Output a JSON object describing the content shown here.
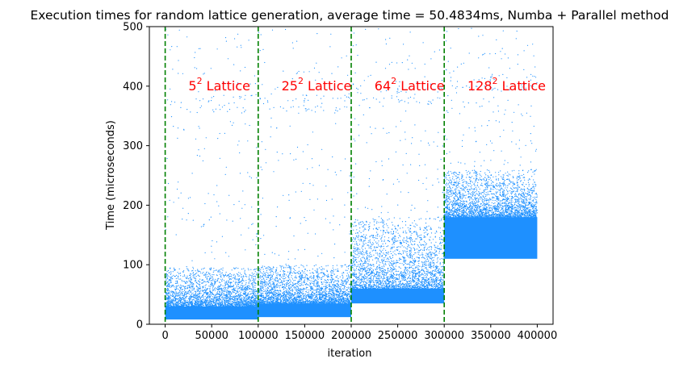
{
  "chart_data": {
    "type": "scatter",
    "title": "Execution times for random lattice generation, average time = 50.4834ms, Numba + Parallel method",
    "xlabel": "iteration",
    "ylabel": "Time (microseconds)",
    "xlim": [
      -17000,
      417000
    ],
    "ylim": [
      0,
      500
    ],
    "xticks": [
      0,
      50000,
      100000,
      150000,
      200000,
      250000,
      300000,
      350000,
      400000
    ],
    "xtick_labels": [
      "0",
      "50000",
      "100000",
      "150000",
      "200000",
      "250000",
      "300000",
      "350000",
      "400000"
    ],
    "yticks": [
      0,
      100,
      200,
      300,
      400,
      500
    ],
    "ytick_labels": [
      "0",
      "100",
      "200",
      "300",
      "400",
      "500"
    ],
    "grid": false,
    "point_color": "#1e90ff",
    "divider_color": "#008000",
    "annotation_color": "#ff0000",
    "dividers": [
      0,
      100000,
      200000,
      300000
    ],
    "annotations": [
      {
        "base": "5",
        "exp": "2",
        "suffix": " Lattice",
        "x": 25000,
        "y": 400
      },
      {
        "base": "25",
        "exp": "2",
        "suffix": " Lattice",
        "x": 125000,
        "y": 400
      },
      {
        "base": "64",
        "exp": "2",
        "suffix": " Lattice",
        "x": 225000,
        "y": 400
      },
      {
        "base": "128",
        "exp": "2",
        "suffix": " Lattice",
        "x": 325000,
        "y": 400
      }
    ],
    "series": [
      {
        "x_range": [
          0,
          100000
        ],
        "baseline": 8,
        "dense_band": [
          5,
          30
        ],
        "spread_max": 95,
        "outlier_level": 365
      },
      {
        "x_range": [
          100000,
          200000
        ],
        "baseline": 12,
        "dense_band": [
          9,
          35
        ],
        "spread_max": 100,
        "outlier_level": 365
      },
      {
        "x_range": [
          200000,
          300000
        ],
        "baseline": 35,
        "dense_band": [
          33,
          60
        ],
        "spread_max": 180,
        "outlier_level": 380
      },
      {
        "x_range": [
          300000,
          400000
        ],
        "baseline": 110,
        "dense_band": [
          110,
          180
        ],
        "spread_max": 260,
        "outlier_level": 400
      }
    ]
  }
}
